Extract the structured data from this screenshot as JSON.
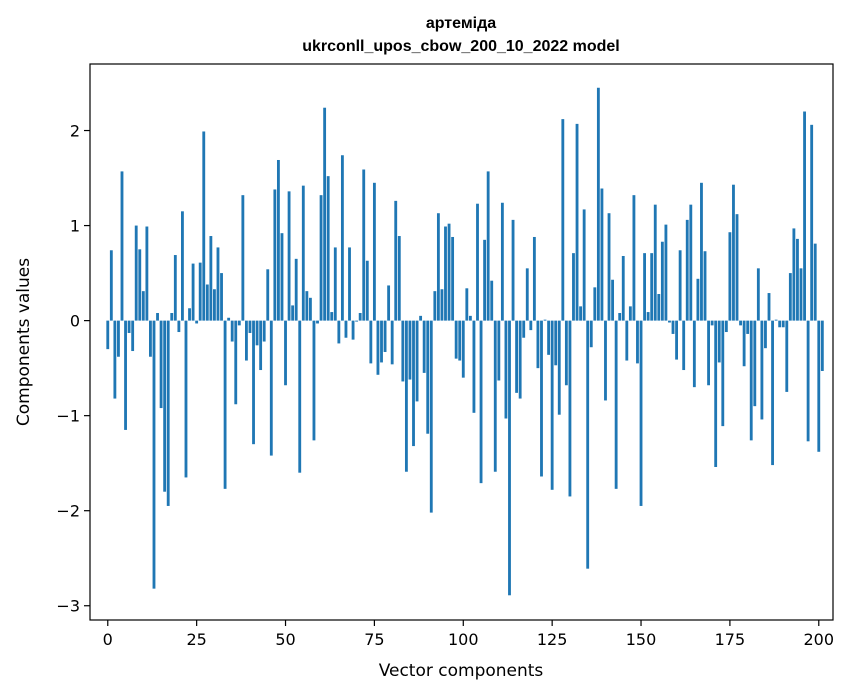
{
  "chart_data": {
    "type": "bar",
    "title": "артеміда",
    "subtitle": "ukrconll_upos_cbow_200_10_2022 model",
    "xlabel": "Vector components",
    "ylabel": "Components values",
    "xlim": [
      -5,
      204
    ],
    "ylim": [
      -3.15,
      2.7
    ],
    "xticks": [
      0,
      25,
      50,
      75,
      100,
      125,
      150,
      175,
      200
    ],
    "yticks": [
      -3,
      -2,
      -1,
      0,
      1,
      2
    ],
    "ytick_labels": [
      "−3",
      "−2",
      "−1",
      "0",
      "1",
      "2"
    ],
    "grid": false,
    "bar_color": "#1f77b4",
    "values": [
      -0.3,
      0.74,
      -0.82,
      -0.38,
      1.57,
      -1.15,
      -0.13,
      -0.32,
      1.0,
      0.75,
      0.31,
      0.99,
      -0.38,
      -2.82,
      0.08,
      -0.92,
      -1.8,
      -1.95,
      0.08,
      0.69,
      -0.12,
      1.15,
      -1.65,
      0.13,
      0.6,
      -0.03,
      0.61,
      1.99,
      0.38,
      0.89,
      0.33,
      0.77,
      0.5,
      -1.77,
      0.03,
      -0.22,
      -0.88,
      -0.05,
      1.32,
      -0.42,
      -0.13,
      -1.3,
      -0.26,
      -0.52,
      -0.22,
      0.54,
      -1.42,
      1.38,
      1.69,
      0.92,
      -0.68,
      1.36,
      0.16,
      0.65,
      -1.6,
      1.42,
      0.31,
      0.24,
      -1.26,
      -0.03,
      1.32,
      2.24,
      1.52,
      0.09,
      0.77,
      -0.24,
      1.74,
      -0.18,
      0.77,
      -0.2,
      -0.01,
      0.08,
      1.59,
      0.63,
      -0.45,
      1.45,
      -0.57,
      -0.44,
      -0.33,
      0.37,
      -0.46,
      1.26,
      0.89,
      -0.64,
      -1.59,
      -0.62,
      -1.32,
      -0.85,
      0.05,
      -0.55,
      -1.19,
      -2.02,
      0.31,
      1.13,
      0.33,
      0.99,
      1.02,
      0.88,
      -0.4,
      -0.42,
      -0.6,
      0.34,
      0.05,
      -0.97,
      1.23,
      -1.71,
      0.85,
      1.57,
      0.42,
      -1.59,
      -0.63,
      1.24,
      -1.03,
      -2.89,
      1.06,
      -0.76,
      -0.82,
      -0.18,
      0.55,
      -0.1,
      0.88,
      -0.5,
      -1.64,
      0.01,
      -0.36,
      -1.78,
      -0.47,
      -0.99,
      2.12,
      -0.68,
      -1.85,
      0.71,
      2.07,
      0.15,
      1.17,
      -2.61,
      -0.28,
      0.35,
      2.45,
      1.39,
      -0.84,
      1.13,
      0.43,
      -1.77,
      0.08,
      0.68,
      -0.42,
      0.15,
      1.32,
      -0.45,
      -1.95,
      0.71,
      0.09,
      0.71,
      1.22,
      0.28,
      0.83,
      1.01,
      -0.02,
      -0.14,
      -0.41,
      0.74,
      -0.52,
      1.06,
      1.22,
      -0.7,
      0.44,
      1.45,
      0.73,
      -0.68,
      -0.05,
      -1.54,
      -0.44,
      -1.11,
      -0.12,
      0.93,
      1.43,
      1.12,
      -0.05,
      -0.48,
      -0.14,
      -1.26,
      -0.9,
      0.55,
      -1.04,
      -0.29,
      0.29,
      -1.52,
      0.01,
      -0.07,
      -0.07,
      -0.75,
      0.5,
      0.97,
      0.86,
      0.55,
      2.2,
      -1.27,
      2.06,
      0.81,
      -1.38,
      -0.53
    ]
  }
}
